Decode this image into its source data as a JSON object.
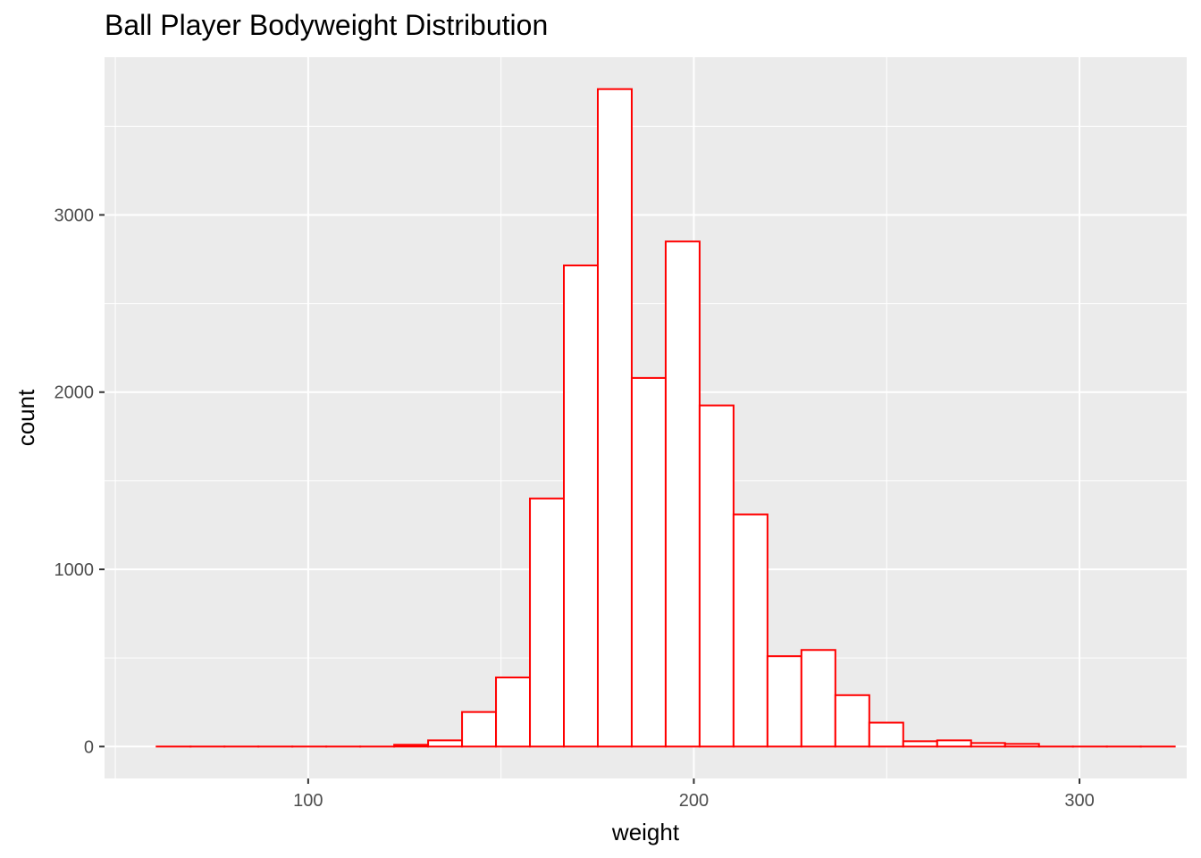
{
  "chart_data": {
    "type": "bar",
    "title": "Ball Player Bodyweight Distribution",
    "xlabel": "weight",
    "ylabel": "count",
    "xlim": [
      47.2,
      327.8
    ],
    "ylim": [
      -180,
      3890
    ],
    "x_ticks": [
      100,
      200,
      300
    ],
    "y_ticks": [
      0,
      1000,
      2000,
      3000
    ],
    "bin_width": 8.8,
    "bins": [
      {
        "x": 65.1,
        "count": 0
      },
      {
        "x": 73.9,
        "count": 0
      },
      {
        "x": 82.7,
        "count": 0
      },
      {
        "x": 91.5,
        "count": 0
      },
      {
        "x": 100.3,
        "count": 0
      },
      {
        "x": 109.1,
        "count": 0
      },
      {
        "x": 117.9,
        "count": 0
      },
      {
        "x": 126.7,
        "count": 10
      },
      {
        "x": 135.5,
        "count": 35
      },
      {
        "x": 144.3,
        "count": 195
      },
      {
        "x": 153.1,
        "count": 390
      },
      {
        "x": 161.9,
        "count": 1400
      },
      {
        "x": 170.7,
        "count": 2715
      },
      {
        "x": 179.5,
        "count": 3710
      },
      {
        "x": 188.3,
        "count": 2080
      },
      {
        "x": 197.1,
        "count": 2850
      },
      {
        "x": 205.9,
        "count": 1925
      },
      {
        "x": 214.7,
        "count": 1310
      },
      {
        "x": 223.5,
        "count": 510
      },
      {
        "x": 232.3,
        "count": 545
      },
      {
        "x": 241.1,
        "count": 290
      },
      {
        "x": 249.9,
        "count": 135
      },
      {
        "x": 258.7,
        "count": 30
      },
      {
        "x": 267.5,
        "count": 35
      },
      {
        "x": 276.3,
        "count": 20
      },
      {
        "x": 285.1,
        "count": 15
      },
      {
        "x": 293.9,
        "count": 0
      },
      {
        "x": 302.7,
        "count": 0
      },
      {
        "x": 311.5,
        "count": 0
      },
      {
        "x": 320.3,
        "count": 0
      }
    ],
    "bar_fill": "#ffffff",
    "bar_outline": "#ff0000",
    "panel_background": "#ebebeb",
    "grid_color": "#ffffff",
    "grid": true,
    "legend": "none"
  }
}
